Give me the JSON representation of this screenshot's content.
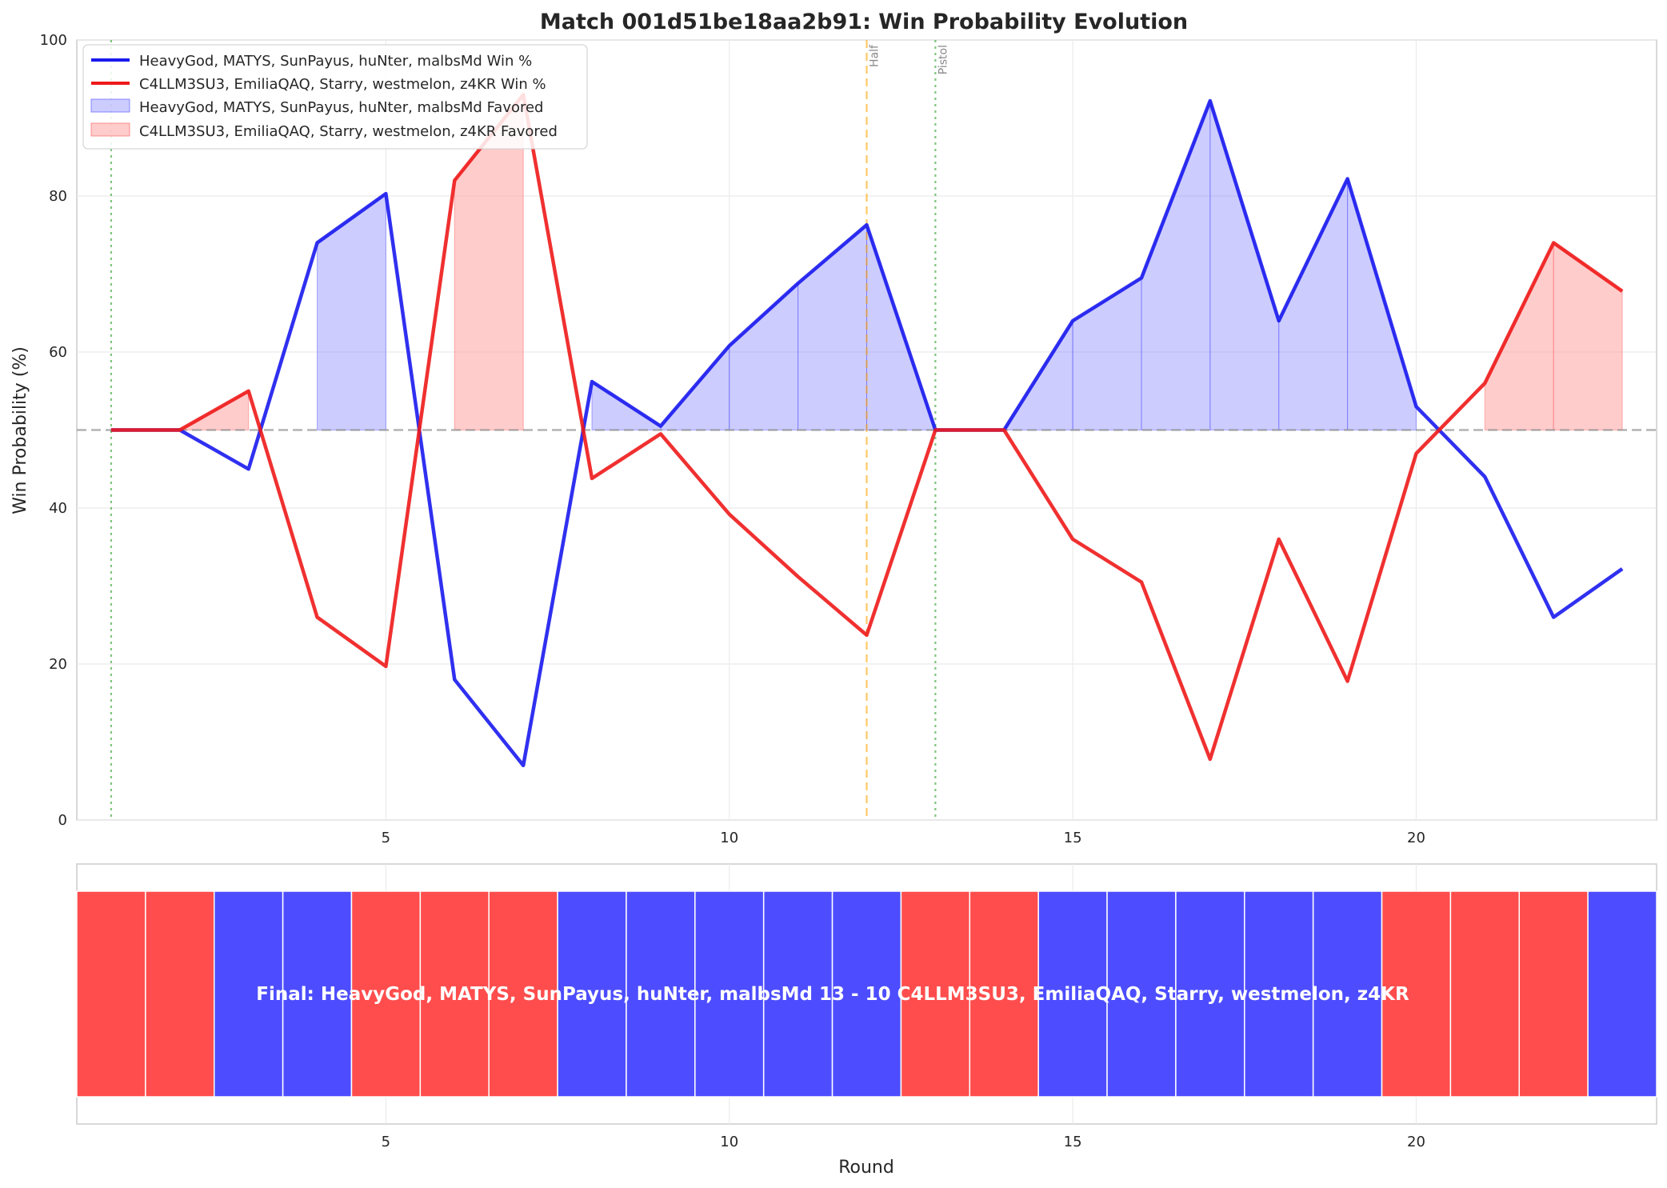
{
  "chart_data": [
    {
      "type": "line",
      "title": "Match 001d51be18aa2b91: Win Probability Evolution",
      "xlabel": "",
      "ylabel": "Win Probability (%)",
      "xlim": [
        0.5,
        23.5
      ],
      "ylim": [
        0,
        100
      ],
      "xticks": [
        5,
        10,
        15,
        20
      ],
      "yticks": [
        0,
        20,
        40,
        60,
        80,
        100
      ],
      "grid": true,
      "legend_position": "top-left",
      "reference_line": 50,
      "x": [
        1,
        2,
        3,
        4,
        5,
        6,
        7,
        8,
        9,
        10,
        11,
        12,
        13,
        14,
        15,
        16,
        17,
        18,
        19,
        20,
        21,
        22,
        23
      ],
      "series": [
        {
          "name": "HeavyGod, MATYS, SunPayus, huNter, malbsMd Win %",
          "color": "#1a1aee",
          "values": [
            50,
            50,
            45,
            74,
            80.3,
            18,
            7,
            56.2,
            50.5,
            60.8,
            68.8,
            76.3,
            50,
            50,
            64,
            69.5,
            92.2,
            64,
            82.2,
            53,
            44,
            26,
            32.2
          ]
        },
        {
          "name": "C4LLM3SU3, EmiliaQAQ, Starry, westmelon, z4KR Win %",
          "color": "#ee1a1a",
          "values": [
            50,
            50,
            55,
            26,
            19.7,
            82,
            93,
            43.8,
            49.5,
            39.2,
            31.2,
            23.7,
            50,
            50,
            36,
            30.5,
            7.8,
            36,
            17.8,
            47,
            56,
            74,
            67.8
          ]
        }
      ],
      "fills": [
        {
          "name": "HeavyGod, MATYS, SunPayus, huNter, malbsMd Favored",
          "color": "#8080ff"
        },
        {
          "name": "C4LLM3SU3, EmiliaQAQ, Starry, westmelon, z4KR Favored",
          "color": "#ff9999"
        }
      ],
      "annotations": [
        {
          "x": 1,
          "label": "",
          "color": "#2ca02c",
          "style": "dotted"
        },
        {
          "x": 12,
          "label": "Half",
          "color": "#ffa500",
          "style": "dashed"
        },
        {
          "x": 13,
          "label": "Pistol",
          "color": "#2ca02c",
          "style": "dotted"
        }
      ]
    },
    {
      "type": "bar",
      "xlabel": "Round",
      "xticks": [
        5,
        10,
        15,
        20
      ],
      "rounds": [
        1,
        2,
        3,
        4,
        5,
        6,
        7,
        8,
        9,
        10,
        11,
        12,
        13,
        14,
        15,
        16,
        17,
        18,
        19,
        20,
        21,
        22,
        23
      ],
      "round_winners": [
        "C4LLM3SU3, EmiliaQAQ, Starry, westmelon, z4KR",
        "C4LLM3SU3, EmiliaQAQ, Starry, westmelon, z4KR",
        "HeavyGod, MATYS, SunPayus, huNter, malbsMd",
        "HeavyGod, MATYS, SunPayus, huNter, malbsMd",
        "C4LLM3SU3, EmiliaQAQ, Starry, westmelon, z4KR",
        "C4LLM3SU3, EmiliaQAQ, Starry, westmelon, z4KR",
        "C4LLM3SU3, EmiliaQAQ, Starry, westmelon, z4KR",
        "HeavyGod, MATYS, SunPayus, huNter, malbsMd",
        "HeavyGod, MATYS, SunPayus, huNter, malbsMd",
        "HeavyGod, MATYS, SunPayus, huNter, malbsMd",
        "HeavyGod, MATYS, SunPayus, huNter, malbsMd",
        "HeavyGod, MATYS, SunPayus, huNter, malbsMd",
        "C4LLM3SU3, EmiliaQAQ, Starry, westmelon, z4KR",
        "C4LLM3SU3, EmiliaQAQ, Starry, westmelon, z4KR",
        "HeavyGod, MATYS, SunPayus, huNter, malbsMd",
        "HeavyGod, MATYS, SunPayus, huNter, malbsMd",
        "HeavyGod, MATYS, SunPayus, huNter, malbsMd",
        "HeavyGod, MATYS, SunPayus, huNter, malbsMd",
        "HeavyGod, MATYS, SunPayus, huNter, malbsMd",
        "C4LLM3SU3, EmiliaQAQ, Starry, westmelon, z4KR",
        "C4LLM3SU3, EmiliaQAQ, Starry, westmelon, z4KR",
        "C4LLM3SU3, EmiliaQAQ, Starry, westmelon, z4KR",
        "HeavyGod, MATYS, SunPayus, huNter, malbsMd"
      ],
      "team_colors": {
        "HeavyGod, MATYS, SunPayus, huNter, malbsMd": "#4d4dff",
        "C4LLM3SU3, EmiliaQAQ, Starry, westmelon, z4KR": "#ff4d4d"
      },
      "center_text": "Final: HeavyGod, MATYS, SunPayus, huNter, malbsMd 13 - 10 C4LLM3SU3, EmiliaQAQ, Starry, westmelon, z4KR"
    }
  ]
}
